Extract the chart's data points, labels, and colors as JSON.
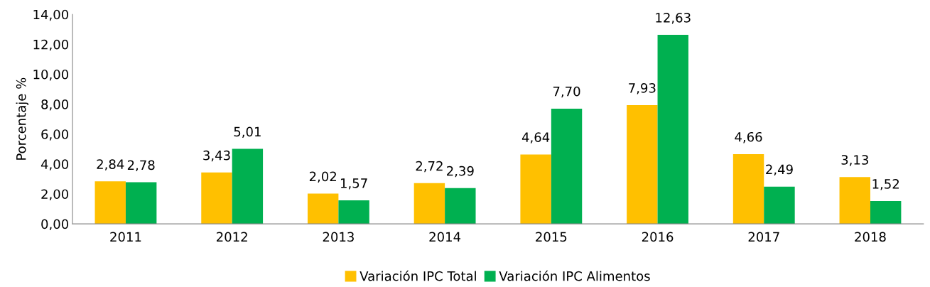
{
  "chart_data": {
    "type": "bar",
    "ylabel": "Porcentaje %",
    "categories": [
      "2011",
      "2012",
      "2013",
      "2014",
      "2015",
      "2016",
      "2017",
      "2018"
    ],
    "series": [
      {
        "name": "Variación IPC Total",
        "color": "#ffc000",
        "values": [
          2.84,
          3.43,
          2.02,
          2.72,
          4.64,
          7.93,
          4.66,
          3.13
        ],
        "value_labels": [
          "2,84",
          "3,43",
          "2,02",
          "2,72",
          "4,64",
          "7,93",
          "4,66",
          "3,13"
        ]
      },
      {
        "name": "Variación IPC Alimentos",
        "color": "#00b050",
        "values": [
          2.78,
          5.01,
          1.57,
          2.39,
          7.7,
          12.63,
          2.49,
          1.52
        ],
        "value_labels": [
          "2,78",
          "5,01",
          "1,57",
          "2,39",
          "7,70",
          "12,63",
          "2,49",
          "1,52"
        ]
      }
    ],
    "ylim": [
      0,
      14
    ],
    "yticks": [
      {
        "value": 0,
        "label": "0,00"
      },
      {
        "value": 2,
        "label": "2,00"
      },
      {
        "value": 4,
        "label": "4,00"
      },
      {
        "value": 6,
        "label": "6,00"
      },
      {
        "value": 8,
        "label": "8,00"
      },
      {
        "value": 10,
        "label": "10,00"
      },
      {
        "value": 12,
        "label": "12,00"
      },
      {
        "value": 14,
        "label": "14,00"
      }
    ],
    "grid": false,
    "legend": "bottom"
  }
}
